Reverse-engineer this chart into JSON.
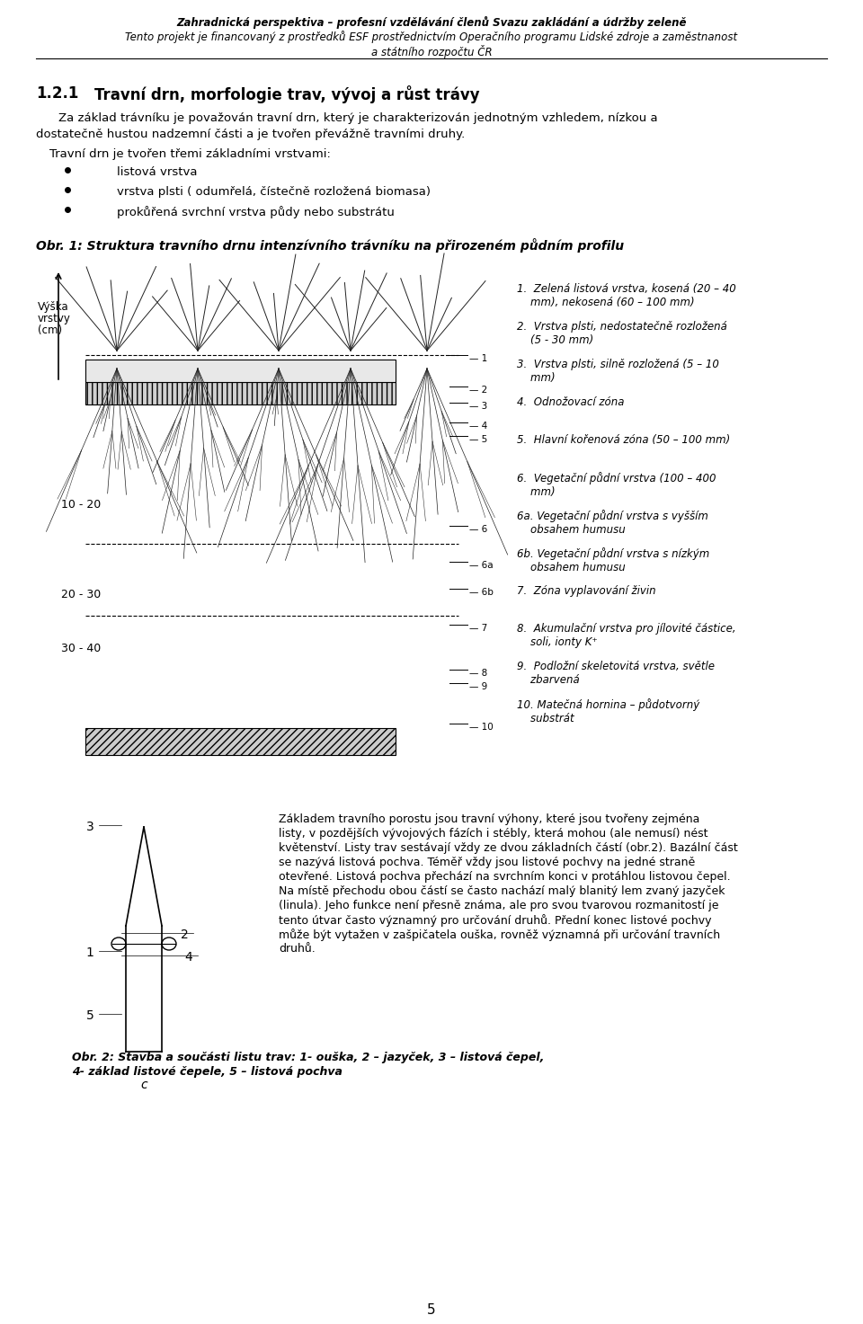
{
  "header_line1": "Zahradnická perspektiva – profesní vzdělávání členů Svazu zakládání a údržby zeleně",
  "header_line2": "Tento projekt je financovaný z prostředků ESF prostřednictvím Operačního programu Lidské zdroje a zaměstnanost",
  "header_line3": "a státního rozpočtu ČR",
  "section_num": "1.2.1",
  "section_title": "Travní drn, morfologie trav, vývoj a růst trávy",
  "para1": "Za základ trávníku je považován travní drn, který je charakterizován jednotným vzhledem, nízkou a\ndostatečně hustou nadzemní částí a je tvořen převážně travními druhy.",
  "para2": "Travní drn je tvořen třemi základními vrstvami:",
  "bullet1": "listová vrstva",
  "bullet2": "vrstva plsti ( odumřelá, čístečně rozložená biomasa)",
  "bullet3": "prokůřená svrchní vrstva půdy nebo substrátu",
  "fig1_caption": "Obr. 1: Struktura travního drnu intenzívního trávníku na přirozeném půdním profilu",
  "ylabel_line1": "Výška",
  "ylabel_line2": "vrstvy",
  "ylabel_line3": "(cm)",
  "label_10_20": "10 - 20",
  "label_20_30": "20 - 30",
  "label_30_40": "30 - 40",
  "legend_items": [
    "1.  Zelená listová vrstva, kosená (20 – 40\n    mm), nekosená (60 – 100 mm)",
    "2.  Vrstva plsti, nedostatečně rozložená\n    (5 - 30 mm)",
    "3.  Vrstva plsti, silně rozložená (5 – 10\n    mm)",
    "4.  Odnožovací zóna",
    "5.  Hlavní kořenová zóna (50 – 100 mm)",
    "6.  Vegetační půdní vrstva (100 – 400\n    mm)",
    "6a. Vegetační půdní vrstva s vyšším\n    obsahem humusu",
    "6b. Vegetační půdní vrstva s nízkým\n    obsahem humusu",
    "7.  Zóna vyplavování živin",
    "8.  Akumulační vrstva pro jílovité částice,\n    soli, ionty K⁺",
    "9.  Podložní skeletovitá vrstva, světle\n    zbarvená",
    "10. Matečná hornina – půdotvorný\n    substrát"
  ],
  "para3": "Základem travního porostu jsou travní výhony, které jsou tvořeny zejména\nlisty, v pozdějších vývojových fázích i stébly, která mohou (ale nemusí) nést\nkvětenství. Listy trav sestávají vždy ze dvou základních částí (obr.2). Bazální část\nse nazývá listová pochva. Téměř vždy jsou listové pochvy na jedné straně\notevřené. Listová pochva přechází na svrchním konci v protáhlou listovou čepel.\nNa místě přechodu obou částí se často nachází malý blanitý lem zvaný jazyček\n(linula). Jeho funkce není přesně známa, ale pro svou tvarovou rozmanitostí je\ntento útvar často významný pro určování druhů. Přední konec listové pochvy\nmůže být vytažen v zašpičatela ouška, rovněž významná při určování travních\ndruhů.",
  "fig2_caption": "Obr. 2: Stavba a součásti listu trav: 1- ouška, 2 – jazyček, 3 – listová čepel,\n4- základ listové čepele, 5 – listová pochva",
  "page_num": "5",
  "bg_color": "#ffffff",
  "text_color": "#000000",
  "fig_color": "#888888"
}
